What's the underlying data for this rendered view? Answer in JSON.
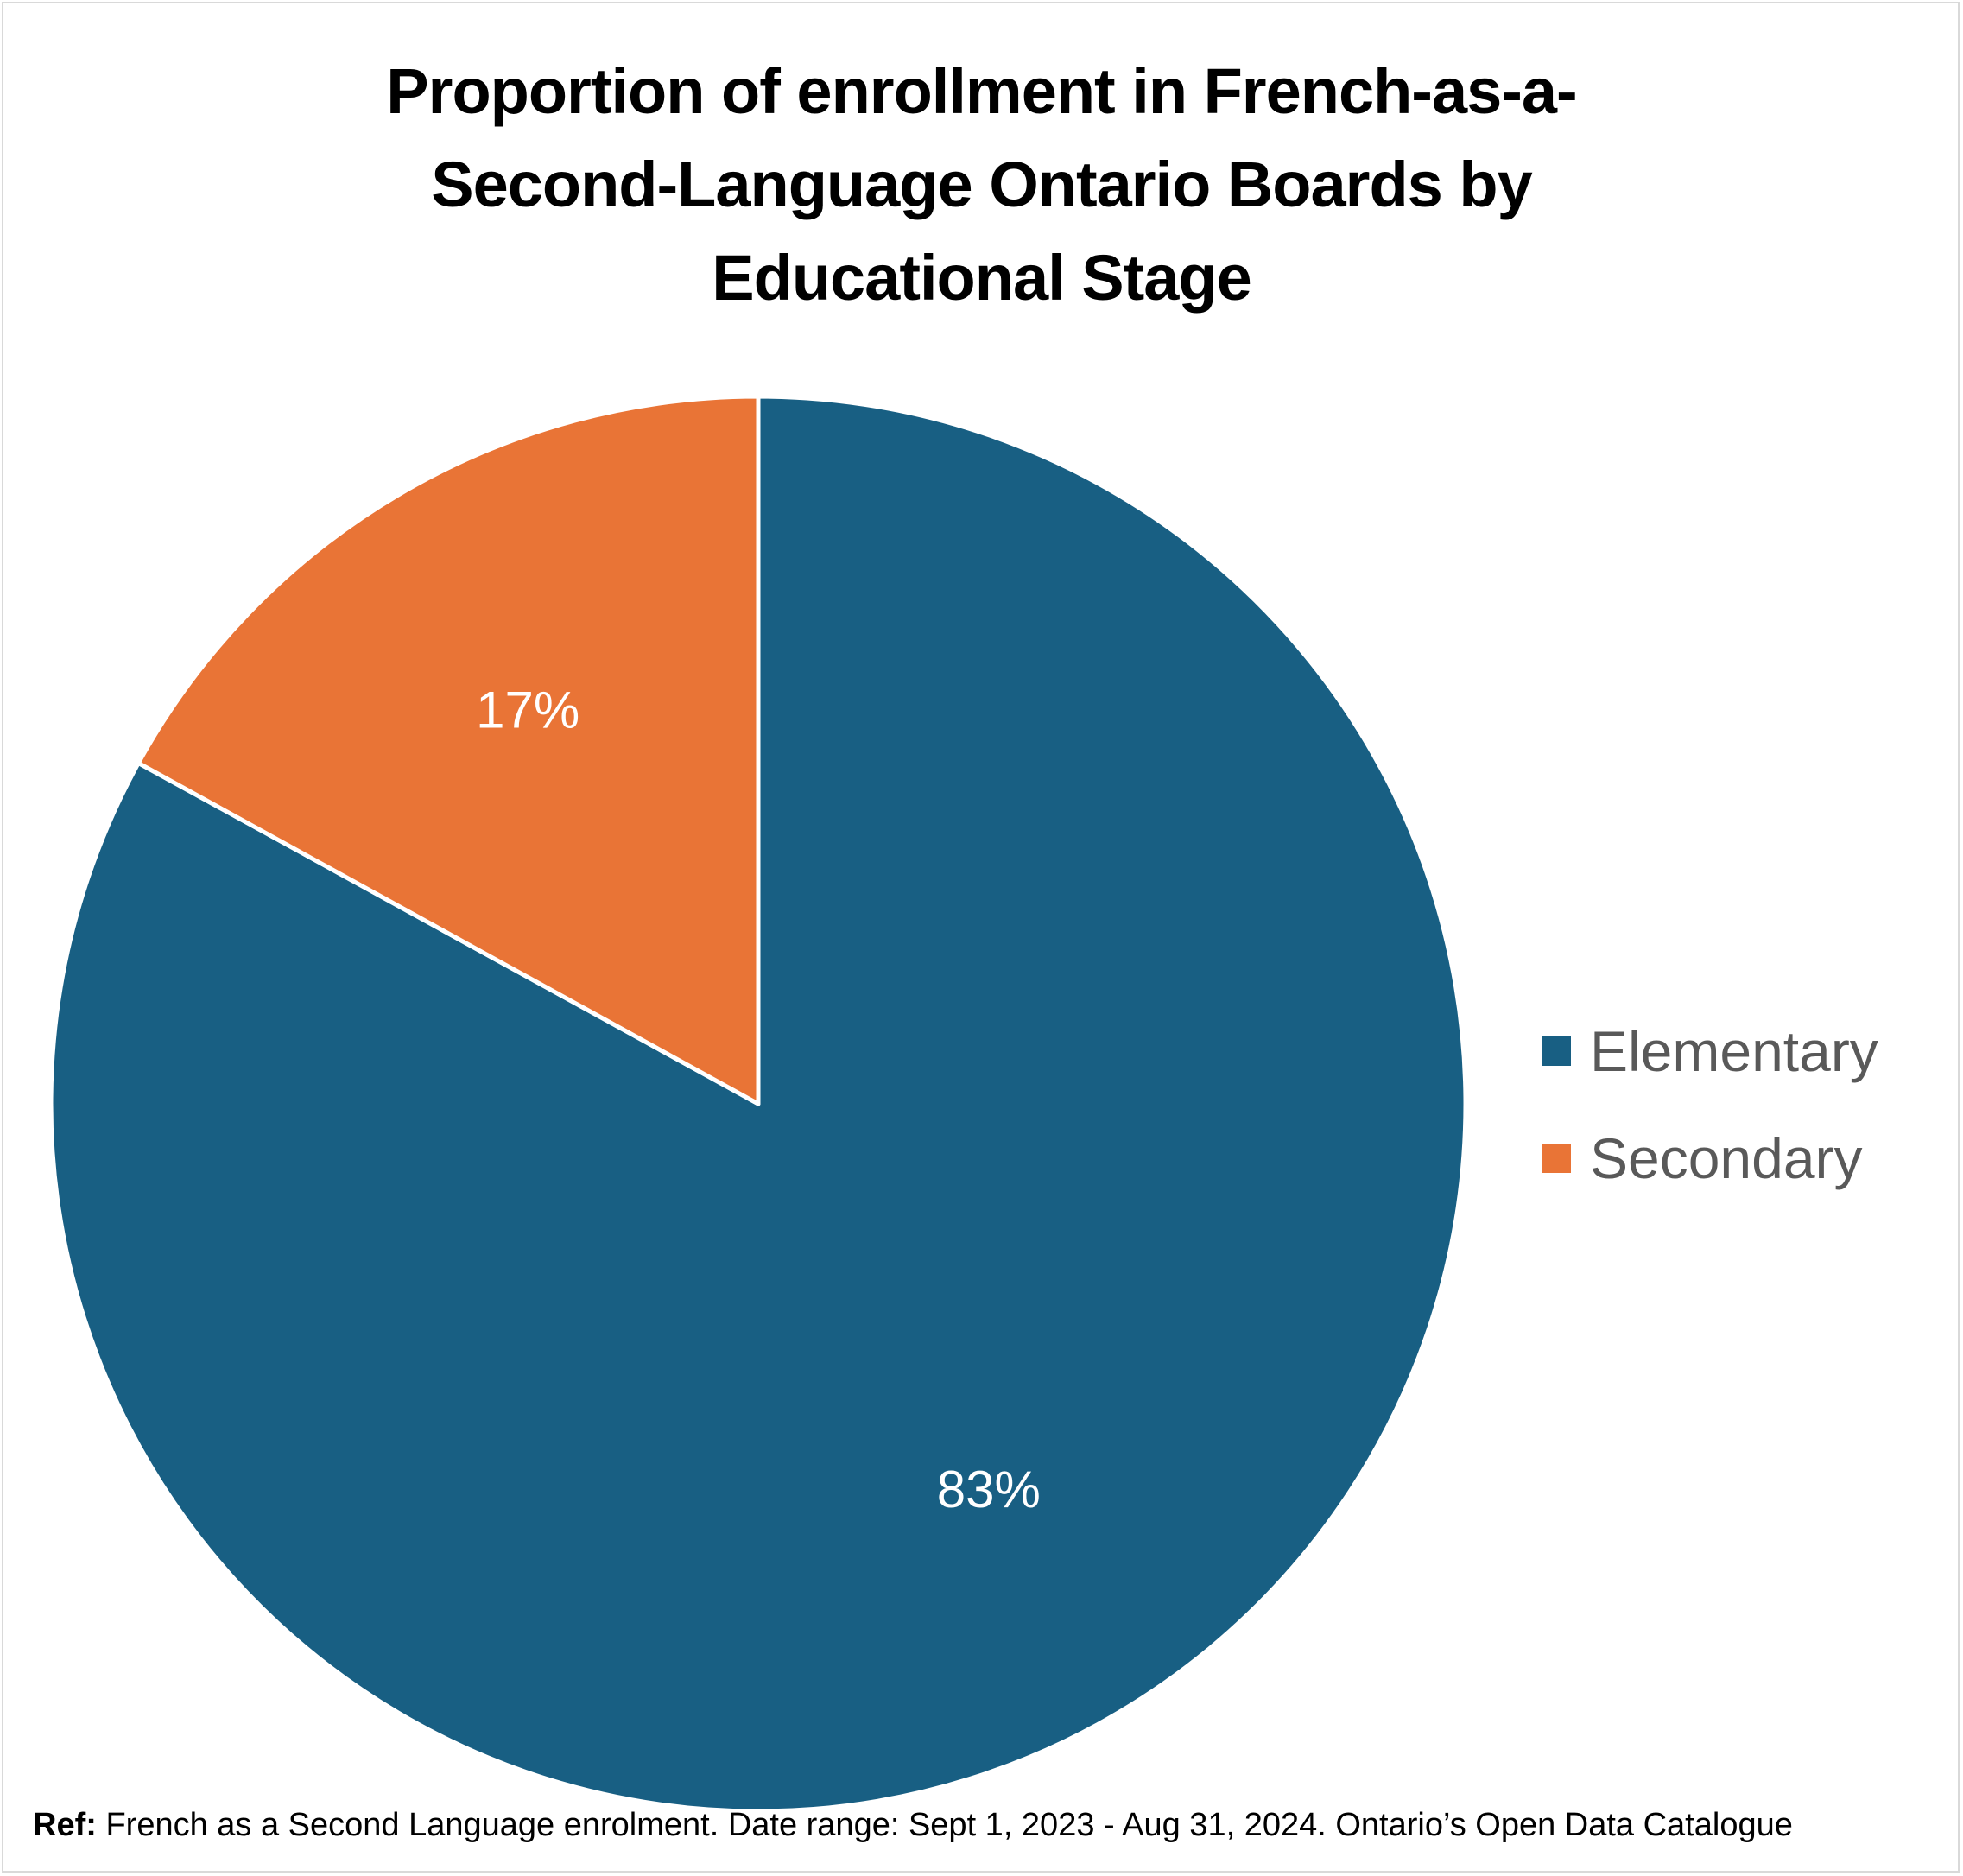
{
  "chart_data": {
    "type": "pie",
    "title": "Proportion of enrollment in French-as-a-Second-Language Ontario Boards by Educational Stage",
    "title_lines": [
      "Proportion of enrollment in French-as-a-",
      "Second-Language Ontario Boards by",
      "Educational Stage"
    ],
    "categories": [
      "Elementary",
      "Secondary"
    ],
    "values": [
      83,
      17
    ],
    "labels": [
      "83%",
      "17%"
    ],
    "colors": [
      "#185f83",
      "#e97436"
    ],
    "legend": {
      "position": "right",
      "entries": [
        "Elementary",
        "Secondary"
      ]
    }
  },
  "footnote": {
    "label": "Ref:",
    "text": "French as a Second Language enrolment. Date range: Sept 1, 2023 - Aug 31, 2024. Ontario’s Open Data Catalogue"
  },
  "label_color": "#ffffff",
  "separator_color": "#ffffff"
}
